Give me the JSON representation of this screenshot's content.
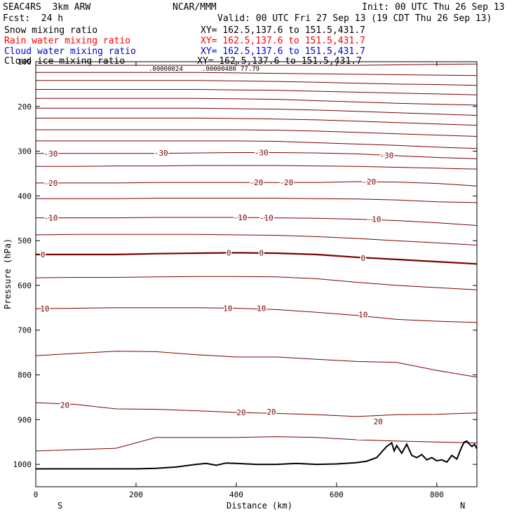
{
  "header": {
    "model": "SEAC4RS  3km ARW",
    "org": "NCAR/MMM",
    "init": "Init: 00 UTC Thu 26 Sep 13",
    "fcst": "Fcst:  24 h",
    "valid": "Valid: 00 UTC Fri 27 Sep 13 (19 CDT Thu 26 Sep 13)",
    "fields": [
      {
        "name": "Snow mixing ratio",
        "xy": "XY= 162.5,137.6 to 151.5,431.7",
        "color": "#000000"
      },
      {
        "name": "Rain water mixing ratio",
        "xy": "XY= 162.5,137.6 to 151.5,431.7",
        "color": "#ff0000"
      },
      {
        "name": "Cloud water mixing ratio",
        "xy": "XY= 162.5,137.6 to 151.5,431.7",
        "color": "#0000cc"
      },
      {
        "name": "Cloud ice mixing ratio",
        "xy": "XY= 162.5,137.6 to 151.5,431.7",
        "color": "#000000"
      }
    ],
    "small_labels": [
      ".00000024",
      ".00000480",
      "77.79"
    ]
  },
  "chart_data": {
    "type": "line",
    "xlabel": "Distance (km)",
    "ylabel": "Pressure (hPa)",
    "xlim": [
      0,
      880
    ],
    "ylim": [
      1050,
      100
    ],
    "x_ticks": [
      0,
      200,
      400,
      600,
      800
    ],
    "y_ticks": [
      100,
      200,
      300,
      400,
      500,
      600,
      700,
      800,
      900,
      1000
    ],
    "x_end_labels": {
      "left": "S",
      "right": "N"
    },
    "contour_color": "#7a0000",
    "zero_isotherm_color": "#7a0000",
    "terrain_color": "#000000",
    "contour_x": [
      0,
      80,
      160,
      240,
      320,
      400,
      480,
      560,
      640,
      720,
      800,
      880
    ],
    "contours": [
      {
        "p": [
          108,
          108,
          108,
          108,
          108,
          108,
          108,
          108,
          108,
          107,
          106,
          105
        ]
      },
      {
        "p": [
          124,
          124,
          124,
          124,
          124,
          125,
          126,
          127,
          128,
          129,
          130,
          131
        ]
      },
      {
        "p": [
          142,
          142,
          142,
          142,
          142,
          143,
          144,
          146,
          148,
          150,
          151,
          153
        ]
      },
      {
        "p": [
          162,
          162,
          162,
          162,
          162,
          163,
          164,
          166,
          168,
          170,
          172,
          174
        ]
      },
      {
        "p": [
          182,
          182,
          182,
          182,
          182,
          183,
          184,
          187,
          190,
          193,
          195,
          197
        ]
      },
      {
        "p": [
          204,
          204,
          204,
          204,
          204,
          205,
          206,
          208,
          211,
          214,
          217,
          220
        ]
      },
      {
        "p": [
          226,
          226,
          226,
          226,
          226,
          227,
          228,
          230,
          233,
          236,
          239,
          242
        ]
      },
      {
        "p": [
          252,
          252,
          252,
          252,
          252,
          252,
          253,
          255,
          258,
          261,
          264,
          267
        ]
      },
      {
        "p": [
          277,
          277,
          277,
          277,
          277,
          277,
          278,
          281,
          284,
          287,
          291,
          294
        ]
      },
      {
        "label": "-30",
        "p": [
          305,
          305,
          305,
          305,
          304,
          303,
          303,
          304,
          306,
          310,
          314,
          317
        ]
      },
      {
        "p": [
          334,
          334,
          333,
          333,
          332,
          332,
          332,
          333,
          334,
          336,
          338,
          340
        ]
      },
      {
        "label": "-20",
        "p": [
          371,
          371,
          371,
          370,
          370,
          370,
          370,
          370,
          368,
          369,
          372,
          378
        ]
      },
      {
        "p": [
          406,
          406,
          406,
          405,
          405,
          405,
          405,
          406,
          407,
          409,
          413,
          415
        ]
      },
      {
        "label": "-10",
        "p": [
          449,
          449,
          449,
          448,
          448,
          448,
          449,
          450,
          452,
          455,
          460,
          466
        ]
      },
      {
        "p": [
          487,
          486,
          486,
          486,
          486,
          487,
          488,
          491,
          495,
          500,
          505,
          510
        ]
      },
      {
        "label": "0",
        "zero": true,
        "p": [
          531,
          531,
          531,
          529,
          528,
          527,
          528,
          531,
          537,
          542,
          547,
          552
        ]
      },
      {
        "p": [
          583,
          582,
          582,
          581,
          580,
          580,
          581,
          585,
          593,
          600,
          605,
          610
        ]
      },
      {
        "label": "10",
        "p": [
          652,
          651,
          650,
          650,
          650,
          651,
          654,
          660,
          667,
          676,
          680,
          683
        ]
      },
      {
        "p": [
          757,
          752,
          747,
          748,
          755,
          760,
          760,
          765,
          770,
          772,
          790,
          805
        ]
      },
      {
        "label": "20",
        "p": [
          862,
          866,
          876,
          877,
          880,
          884,
          886,
          889,
          893,
          889,
          888,
          885
        ]
      },
      {
        "p": [
          970,
          967,
          964,
          940,
          940,
          940,
          938,
          940,
          945,
          948,
          950,
          952
        ]
      }
    ],
    "contour_labels": [
      {
        "text": "-30",
        "x": 30,
        "p": 305
      },
      {
        "text": "-30",
        "x": 250,
        "p": 304
      },
      {
        "text": "-30",
        "x": 450,
        "p": 303
      },
      {
        "text": "-30",
        "x": 700,
        "p": 309
      },
      {
        "text": "-20",
        "x": 30,
        "p": 371
      },
      {
        "text": "-20",
        "x": 440,
        "p": 370
      },
      {
        "text": "-20",
        "x": 500,
        "p": 370
      },
      {
        "text": "-20",
        "x": 665,
        "p": 368
      },
      {
        "text": "-10",
        "x": 30,
        "p": 449
      },
      {
        "text": "-10",
        "x": 408,
        "p": 448
      },
      {
        "text": "-10",
        "x": 460,
        "p": 449
      },
      {
        "text": "-10",
        "x": 675,
        "p": 452
      },
      {
        "text": "0",
        "x": 14,
        "p": 531
      },
      {
        "text": "0",
        "x": 385,
        "p": 527
      },
      {
        "text": "0",
        "x": 450,
        "p": 527
      },
      {
        "text": "0",
        "x": 653,
        "p": 539
      },
      {
        "text": "10",
        "x": 18,
        "p": 652
      },
      {
        "text": "10",
        "x": 383,
        "p": 651
      },
      {
        "text": "10",
        "x": 450,
        "p": 651
      },
      {
        "text": "10",
        "x": 653,
        "p": 665
      },
      {
        "text": "20",
        "x": 58,
        "p": 867
      },
      {
        "text": "20",
        "x": 410,
        "p": 884
      },
      {
        "text": "20",
        "x": 470,
        "p": 882
      },
      {
        "text": "20",
        "x": 683,
        "p": 904
      }
    ],
    "terrain": {
      "x": [
        0,
        100,
        200,
        240,
        280,
        320,
        340,
        360,
        380,
        400,
        440,
        480,
        520,
        560,
        600,
        640,
        660,
        680,
        700,
        710,
        715,
        720,
        730,
        740,
        750,
        760,
        770,
        780,
        790,
        800,
        810,
        820,
        830,
        840,
        850,
        855,
        860,
        865,
        870,
        875,
        880
      ],
      "p": [
        1010,
        1010,
        1010,
        1009,
        1006,
        1000,
        998,
        1002,
        997,
        998,
        1000,
        1000,
        998,
        1000,
        999,
        996,
        993,
        985,
        960,
        952,
        970,
        958,
        975,
        955,
        980,
        985,
        978,
        990,
        985,
        992,
        990,
        995,
        980,
        988,
        960,
        950,
        948,
        955,
        960,
        955,
        965
      ]
    }
  }
}
